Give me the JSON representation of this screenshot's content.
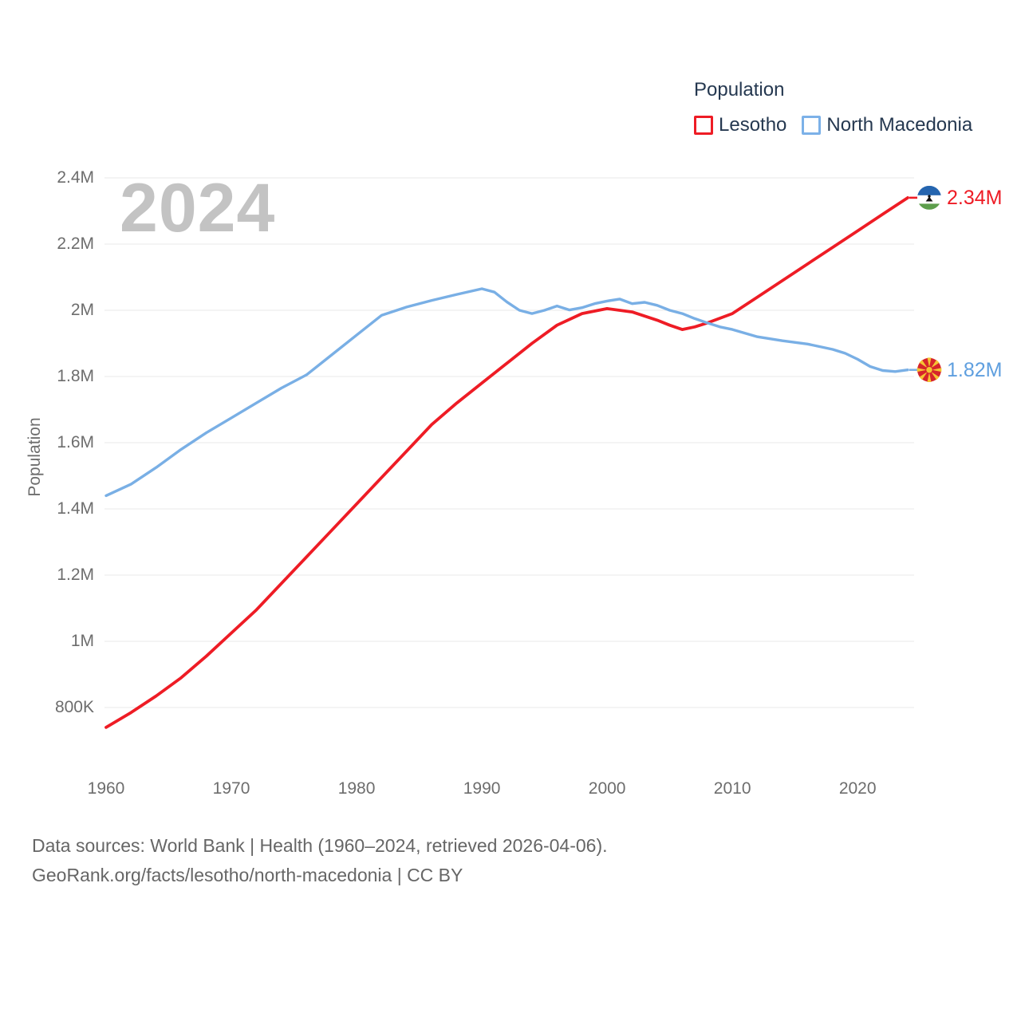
{
  "watermark": "2024",
  "legend": {
    "title": "Population",
    "items": [
      {
        "label": "Lesotho",
        "color": "#ee1c25"
      },
      {
        "label": "North Macedonia",
        "color": "#7cb1e8"
      }
    ]
  },
  "y_axis": {
    "title": "Population",
    "ticks": [
      {
        "value": 2400000,
        "label": "2.4M"
      },
      {
        "value": 2200000,
        "label": "2.2M"
      },
      {
        "value": 2000000,
        "label": "2M"
      },
      {
        "value": 1800000,
        "label": "1.8M"
      },
      {
        "value": 1600000,
        "label": "1.6M"
      },
      {
        "value": 1400000,
        "label": "1.4M"
      },
      {
        "value": 1200000,
        "label": "1.2M"
      },
      {
        "value": 1000000,
        "label": "1M"
      },
      {
        "value": 800000,
        "label": "800K"
      }
    ]
  },
  "x_axis": {
    "ticks": [
      {
        "value": 1960,
        "label": "1960"
      },
      {
        "value": 1970,
        "label": "1970"
      },
      {
        "value": 1980,
        "label": "1980"
      },
      {
        "value": 1990,
        "label": "1990"
      },
      {
        "value": 2000,
        "label": "2000"
      },
      {
        "value": 2010,
        "label": "2010"
      },
      {
        "value": 2020,
        "label": "2020"
      }
    ]
  },
  "chart_data": {
    "type": "line",
    "title": "Population",
    "xlabel": "",
    "ylabel": "Population",
    "x_range": [
      1960,
      2024
    ],
    "ylim": [
      800000,
      2400000
    ],
    "grid": "horizontal",
    "legend_position": "top-right",
    "series": [
      {
        "name": "Lesotho",
        "color": "#ee1c25",
        "end_label": "2.34M",
        "end_value": 2340000,
        "flag": "lesotho",
        "flag_colors": {
          "blue": "#2565af",
          "white": "#ffffff",
          "green": "#5d9e4c",
          "hat": "#111111"
        },
        "points": [
          [
            1960,
            740000
          ],
          [
            1962,
            785000
          ],
          [
            1964,
            835000
          ],
          [
            1966,
            890000
          ],
          [
            1968,
            955000
          ],
          [
            1970,
            1025000
          ],
          [
            1972,
            1095000
          ],
          [
            1974,
            1175000
          ],
          [
            1976,
            1255000
          ],
          [
            1978,
            1335000
          ],
          [
            1980,
            1415000
          ],
          [
            1982,
            1495000
          ],
          [
            1984,
            1575000
          ],
          [
            1986,
            1655000
          ],
          [
            1988,
            1720000
          ],
          [
            1990,
            1780000
          ],
          [
            1992,
            1840000
          ],
          [
            1994,
            1900000
          ],
          [
            1996,
            1955000
          ],
          [
            1998,
            1990000
          ],
          [
            2000,
            2005000
          ],
          [
            2002,
            1995000
          ],
          [
            2004,
            1970000
          ],
          [
            2005,
            1955000
          ],
          [
            2006,
            1942000
          ],
          [
            2007,
            1950000
          ],
          [
            2008,
            1962000
          ],
          [
            2010,
            1990000
          ],
          [
            2012,
            2040000
          ],
          [
            2014,
            2090000
          ],
          [
            2016,
            2140000
          ],
          [
            2018,
            2190000
          ],
          [
            2020,
            2240000
          ],
          [
            2022,
            2290000
          ],
          [
            2024,
            2340000
          ]
        ]
      },
      {
        "name": "North Macedonia",
        "color": "#79afe5",
        "end_label": "1.82M",
        "end_value": 1820000,
        "flag": "north-macedonia",
        "flag_colors": {
          "red": "#d6252b",
          "yellow": "#f5c433"
        },
        "points": [
          [
            1960,
            1440000
          ],
          [
            1962,
            1475000
          ],
          [
            1964,
            1525000
          ],
          [
            1966,
            1580000
          ],
          [
            1968,
            1630000
          ],
          [
            1970,
            1675000
          ],
          [
            1972,
            1720000
          ],
          [
            1974,
            1765000
          ],
          [
            1976,
            1805000
          ],
          [
            1978,
            1865000
          ],
          [
            1980,
            1925000
          ],
          [
            1982,
            1985000
          ],
          [
            1984,
            2010000
          ],
          [
            1986,
            2030000
          ],
          [
            1988,
            2048000
          ],
          [
            1990,
            2065000
          ],
          [
            1991,
            2055000
          ],
          [
            1992,
            2025000
          ],
          [
            1993,
            2000000
          ],
          [
            1994,
            1990000
          ],
          [
            1995,
            2000000
          ],
          [
            1996,
            2013000
          ],
          [
            1997,
            2001000
          ],
          [
            1998,
            2008000
          ],
          [
            1999,
            2020000
          ],
          [
            2000,
            2028000
          ],
          [
            2001,
            2034000
          ],
          [
            2002,
            2020000
          ],
          [
            2003,
            2024000
          ],
          [
            2004,
            2015000
          ],
          [
            2005,
            2000000
          ],
          [
            2006,
            1990000
          ],
          [
            2007,
            1975000
          ],
          [
            2008,
            1962000
          ],
          [
            2009,
            1950000
          ],
          [
            2010,
            1942000
          ],
          [
            2012,
            1920000
          ],
          [
            2014,
            1908000
          ],
          [
            2016,
            1898000
          ],
          [
            2018,
            1882000
          ],
          [
            2019,
            1870000
          ],
          [
            2020,
            1852000
          ],
          [
            2021,
            1830000
          ],
          [
            2022,
            1818000
          ],
          [
            2023,
            1815000
          ],
          [
            2024,
            1820000
          ]
        ]
      }
    ]
  },
  "value_label_colors": {
    "lesotho": "#ee1c25",
    "north_macedonia": "#5f9fdf"
  },
  "footer": {
    "line1": "Data sources: World Bank | Health (1960–2024, retrieved 2026-04-06).",
    "line2": "GeoRank.org/facts/lesotho/north-macedonia | CC BY"
  }
}
